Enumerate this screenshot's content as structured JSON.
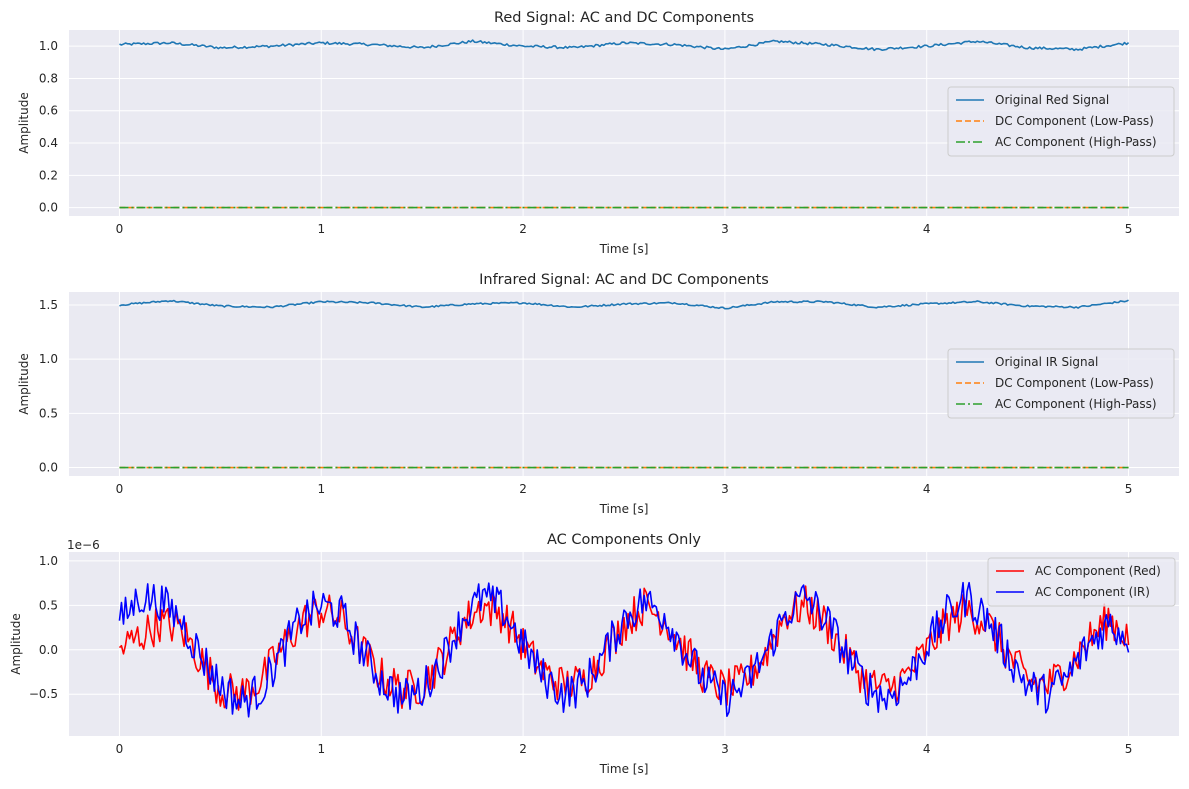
{
  "chart_data": [
    {
      "type": "line",
      "title": "Red Signal: AC and DC Components",
      "xlabel": "Time [s]",
      "ylabel": "Amplitude",
      "xlim": [
        -0.25,
        5.25
      ],
      "ylim": [
        -0.052,
        1.1
      ],
      "xticks": [
        "0",
        "1",
        "2",
        "3",
        "4",
        "5"
      ],
      "yticks": [
        "0.0",
        "0.2",
        "0.4",
        "0.6",
        "0.8",
        "1.0"
      ],
      "grid": true,
      "legend_position": "center-right",
      "series": [
        {
          "name": "Original Red Signal",
          "color": "#1f77b4",
          "style": "solid",
          "x": [
            0,
            0.25,
            0.5,
            0.75,
            1.0,
            1.25,
            1.5,
            1.75,
            2.0,
            2.25,
            2.5,
            2.75,
            3.0,
            3.25,
            3.5,
            3.75,
            4.0,
            4.25,
            4.5,
            4.75,
            5.0
          ],
          "values": [
            1.01,
            1.02,
            0.99,
            1.0,
            1.02,
            1.01,
            0.99,
            1.03,
            1.0,
            0.99,
            1.02,
            1.01,
            0.98,
            1.03,
            1.01,
            0.98,
            1.0,
            1.03,
            0.99,
            0.98,
            1.02
          ]
        },
        {
          "name": "DC Component (Low-Pass)",
          "color": "#ff7f0e",
          "style": "dashed",
          "x": [
            0,
            5
          ],
          "values": [
            0.0,
            0.0
          ]
        },
        {
          "name": "AC Component (High-Pass)",
          "color": "#2ca02c",
          "style": "dashdot",
          "x": [
            0,
            5
          ],
          "values": [
            0.0,
            0.0
          ]
        }
      ]
    },
    {
      "type": "line",
      "title": "Infrared Signal: AC and DC Components",
      "xlabel": "Time [s]",
      "ylabel": "Amplitude",
      "xlim": [
        -0.25,
        5.25
      ],
      "ylim": [
        -0.078,
        1.62
      ],
      "xticks": [
        "0",
        "1",
        "2",
        "3",
        "4",
        "5"
      ],
      "yticks": [
        "0.0",
        "0.5",
        "1.0",
        "1.5"
      ],
      "grid": true,
      "legend_position": "center-right",
      "series": [
        {
          "name": "Original IR Signal",
          "color": "#1f77b4",
          "style": "solid",
          "x": [
            0,
            0.25,
            0.5,
            0.75,
            1.0,
            1.25,
            1.5,
            1.75,
            2.0,
            2.25,
            2.5,
            2.75,
            3.0,
            3.25,
            3.5,
            3.75,
            4.0,
            4.25,
            4.5,
            4.75,
            5.0
          ],
          "values": [
            1.5,
            1.54,
            1.49,
            1.48,
            1.53,
            1.52,
            1.48,
            1.51,
            1.52,
            1.48,
            1.51,
            1.52,
            1.47,
            1.53,
            1.53,
            1.48,
            1.51,
            1.53,
            1.49,
            1.48,
            1.54
          ]
        },
        {
          "name": "DC Component (Low-Pass)",
          "color": "#ff7f0e",
          "style": "dashed",
          "x": [
            0,
            5
          ],
          "values": [
            0.0,
            0.0
          ]
        },
        {
          "name": "AC Component (High-Pass)",
          "color": "#2ca02c",
          "style": "dashdot",
          "x": [
            0,
            5
          ],
          "values": [
            0.0,
            0.0
          ]
        }
      ]
    },
    {
      "type": "line",
      "title": "AC Components Only",
      "xlabel": "Time [s]",
      "ylabel": "Amplitude",
      "y_offset_label": "1e−6",
      "xlim": [
        -0.25,
        5.25
      ],
      "ylim": [
        -0.97,
        1.1
      ],
      "xticks": [
        "0",
        "1",
        "2",
        "3",
        "4",
        "5"
      ],
      "yticks": [
        "−0.5",
        "0.0",
        "0.5",
        "1.0"
      ],
      "grid": true,
      "legend_position": "top-right",
      "series": [
        {
          "name": "AC Component (Red)",
          "color": "#ff0000",
          "style": "solid",
          "x": [
            0,
            0.1,
            0.2,
            0.3,
            0.4,
            0.5,
            0.6,
            0.7,
            0.8,
            0.9,
            1.0,
            1.1,
            1.2,
            1.3,
            1.4,
            1.5,
            1.6,
            1.7,
            1.8,
            1.9,
            2.0,
            2.1,
            2.2,
            2.3,
            2.4,
            2.5,
            2.6,
            2.7,
            2.8,
            2.9,
            3.0,
            3.1,
            3.2,
            3.3,
            3.4,
            3.5,
            3.6,
            3.7,
            3.8,
            3.9,
            4.0,
            4.1,
            4.2,
            4.3,
            4.4,
            4.5,
            4.6,
            4.7,
            4.8,
            4.9,
            5.0
          ],
          "values": [
            0.0,
            0.15,
            0.3,
            0.25,
            -0.1,
            -0.45,
            -0.5,
            -0.35,
            0.0,
            0.3,
            0.45,
            0.35,
            0.0,
            -0.3,
            -0.45,
            -0.4,
            -0.1,
            0.3,
            0.5,
            0.4,
            0.05,
            -0.25,
            -0.4,
            -0.35,
            -0.05,
            0.3,
            0.5,
            0.35,
            0.0,
            -0.3,
            -0.45,
            -0.35,
            -0.05,
            0.4,
            0.5,
            0.3,
            -0.05,
            -0.35,
            -0.45,
            -0.3,
            0.0,
            0.3,
            0.45,
            0.3,
            -0.05,
            -0.35,
            -0.4,
            -0.2,
            0.1,
            0.35,
            0.15
          ]
        },
        {
          "name": "AC Component (IR)",
          "color": "#0000ff",
          "style": "solid",
          "x": [
            0,
            0.1,
            0.2,
            0.3,
            0.4,
            0.5,
            0.6,
            0.7,
            0.8,
            0.9,
            1.0,
            1.1,
            1.2,
            1.3,
            1.4,
            1.5,
            1.6,
            1.7,
            1.8,
            1.9,
            2.0,
            2.1,
            2.2,
            2.3,
            2.4,
            2.5,
            2.6,
            2.7,
            2.8,
            2.9,
            3.0,
            3.1,
            3.2,
            3.3,
            3.4,
            3.5,
            3.6,
            3.7,
            3.8,
            3.9,
            4.0,
            4.1,
            4.2,
            4.3,
            4.4,
            4.5,
            4.6,
            4.7,
            4.8,
            4.9,
            5.0
          ],
          "values": [
            0.3,
            0.6,
            0.55,
            0.35,
            -0.05,
            -0.4,
            -0.6,
            -0.45,
            -0.05,
            0.35,
            0.5,
            0.4,
            0.0,
            -0.35,
            -0.55,
            -0.45,
            -0.1,
            0.35,
            0.6,
            0.45,
            0.05,
            -0.3,
            -0.5,
            -0.4,
            -0.05,
            0.35,
            0.55,
            0.4,
            0.0,
            -0.35,
            -0.55,
            -0.4,
            -0.05,
            0.4,
            0.6,
            0.35,
            -0.05,
            -0.4,
            -0.55,
            -0.35,
            0.05,
            0.4,
            0.6,
            0.35,
            -0.05,
            -0.4,
            -0.5,
            -0.3,
            0.05,
            0.3,
            0.15
          ]
        }
      ]
    }
  ]
}
